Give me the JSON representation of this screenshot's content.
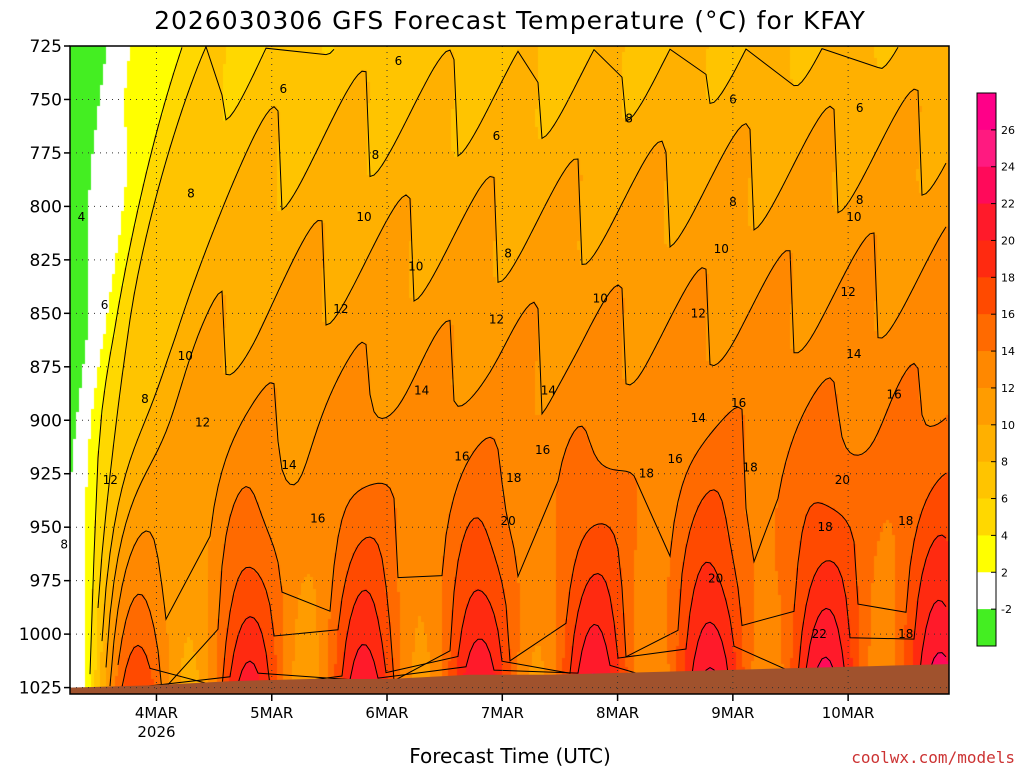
{
  "chart_data": {
    "type": "heatmap",
    "title": "2026030306 GFS Forecast Temperature (°C) for KFAY",
    "xlabel": "Forecast Time (UTC)",
    "ylabel": "",
    "credit": "coolwx.com/models",
    "y_axis": {
      "ticks": [
        725,
        750,
        775,
        800,
        825,
        850,
        875,
        900,
        925,
        950,
        975,
        1000,
        1025
      ],
      "range": [
        725,
        1028
      ],
      "direction": "pressure increasing downward"
    },
    "x_axis": {
      "range_start": "2026-03-03T06Z",
      "range_end": "2026-03-10T21Z",
      "ticks": [
        {
          "label": "4MAR",
          "sublabel": "2026",
          "day": 4
        },
        {
          "label": "5MAR",
          "sublabel": "",
          "day": 5
        },
        {
          "label": "6MAR",
          "sublabel": "",
          "day": 6
        },
        {
          "label": "7MAR",
          "sublabel": "",
          "day": 7
        },
        {
          "label": "8MAR",
          "sublabel": "",
          "day": 8
        },
        {
          "label": "9MAR",
          "sublabel": "",
          "day": 9
        },
        {
          "label": "10MAR",
          "sublabel": "",
          "day": 10
        }
      ]
    },
    "colorbar": {
      "ticks": [
        26,
        24,
        22,
        20,
        18,
        16,
        14,
        12,
        10,
        8,
        6,
        4,
        2,
        -2
      ],
      "bands": [
        {
          "min": 26,
          "max": 28,
          "color": "#ff0088"
        },
        {
          "min": 24,
          "max": 26,
          "color": "#ff1a80"
        },
        {
          "min": 22,
          "max": 24,
          "color": "#ff0a5a"
        },
        {
          "min": 20,
          "max": 22,
          "color": "#ff1a2a"
        },
        {
          "min": 18,
          "max": 20,
          "color": "#ff2a10"
        },
        {
          "min": 16,
          "max": 18,
          "color": "#ff4a00"
        },
        {
          "min": 14,
          "max": 16,
          "color": "#ff6a00"
        },
        {
          "min": 12,
          "max": 14,
          "color": "#ff8800"
        },
        {
          "min": 10,
          "max": 12,
          "color": "#ff9c00"
        },
        {
          "min": 8,
          "max": 10,
          "color": "#ffb000"
        },
        {
          "min": 6,
          "max": 8,
          "color": "#ffc400"
        },
        {
          "min": 4,
          "max": 6,
          "color": "#ffd800"
        },
        {
          "min": 2,
          "max": 4,
          "color": "#ffff00"
        },
        {
          "min": -2,
          "max": 2,
          "color": "#ffffff"
        },
        {
          "min": -4,
          "max": -2,
          "color": "#44ee22"
        }
      ]
    },
    "contour_levels": [
      4,
      6,
      8,
      10,
      12,
      14,
      16,
      18,
      20,
      22
    ],
    "contour_labels": [
      {
        "value": "6",
        "day": 5.1,
        "p": 745
      },
      {
        "value": "6",
        "day": 6.1,
        "p": 732
      },
      {
        "value": "6",
        "day": 6.95,
        "p": 767
      },
      {
        "value": "6",
        "day": 9.0,
        "p": 750
      },
      {
        "value": "6",
        "day": 10.1,
        "p": 754
      },
      {
        "value": "6",
        "day": 3.55,
        "p": 846
      },
      {
        "value": "4",
        "day": 3.35,
        "p": 805
      },
      {
        "value": "8",
        "day": 4.3,
        "p": 794
      },
      {
        "value": "8",
        "day": 5.9,
        "p": 776
      },
      {
        "value": "8",
        "day": 7.05,
        "p": 822
      },
      {
        "value": "8",
        "day": 8.1,
        "p": 759
      },
      {
        "value": "8",
        "day": 9.0,
        "p": 798
      },
      {
        "value": "8",
        "day": 10.1,
        "p": 797
      },
      {
        "value": "8",
        "day": 3.9,
        "p": 890
      },
      {
        "value": "8",
        "day": 3.2,
        "p": 958
      },
      {
        "value": "10",
        "day": 5.8,
        "p": 805
      },
      {
        "value": "10",
        "day": 6.25,
        "p": 828
      },
      {
        "value": "10",
        "day": 7.85,
        "p": 843
      },
      {
        "value": "10",
        "day": 8.9,
        "p": 820
      },
      {
        "value": "10",
        "day": 10.05,
        "p": 805
      },
      {
        "value": "10",
        "day": 4.25,
        "p": 870
      },
      {
        "value": "12",
        "day": 5.6,
        "p": 848
      },
      {
        "value": "12",
        "day": 6.95,
        "p": 853
      },
      {
        "value": "12",
        "day": 8.7,
        "p": 850
      },
      {
        "value": "12",
        "day": 10.0,
        "p": 840
      },
      {
        "value": "12",
        "day": 4.4,
        "p": 901
      },
      {
        "value": "12",
        "day": 3.6,
        "p": 928
      },
      {
        "value": "14",
        "day": 5.15,
        "p": 921
      },
      {
        "value": "14",
        "day": 6.3,
        "p": 886
      },
      {
        "value": "14",
        "day": 7.4,
        "p": 886
      },
      {
        "value": "14",
        "day": 8.7,
        "p": 899
      },
      {
        "value": "14",
        "day": 10.05,
        "p": 869
      },
      {
        "value": "16",
        "day": 5.4,
        "p": 946
      },
      {
        "value": "16",
        "day": 6.65,
        "p": 917
      },
      {
        "value": "16",
        "day": 7.35,
        "p": 914
      },
      {
        "value": "16",
        "day": 8.5,
        "p": 918
      },
      {
        "value": "16",
        "day": 9.05,
        "p": 892
      },
      {
        "value": "16",
        "day": 10.4,
        "p": 888
      },
      {
        "value": "18",
        "day": 7.1,
        "p": 927
      },
      {
        "value": "18",
        "day": 8.25,
        "p": 925
      },
      {
        "value": "18",
        "day": 9.15,
        "p": 922
      },
      {
        "value": "18",
        "day": 9.8,
        "p": 950
      },
      {
        "value": "18",
        "day": 10.5,
        "p": 947
      },
      {
        "value": "18",
        "day": 10.5,
        "p": 1000
      },
      {
        "value": "20",
        "day": 7.05,
        "p": 947
      },
      {
        "value": "20",
        "day": 8.85,
        "p": 974
      },
      {
        "value": "20",
        "day": 9.95,
        "p": 928
      },
      {
        "value": "22",
        "day": 9.75,
        "p": 1000
      }
    ],
    "ground_surface_p": [
      1025,
      1024,
      1022,
      1021,
      1021,
      1019,
      1019,
      1018,
      1017,
      1016,
      1015,
      1014
    ]
  }
}
